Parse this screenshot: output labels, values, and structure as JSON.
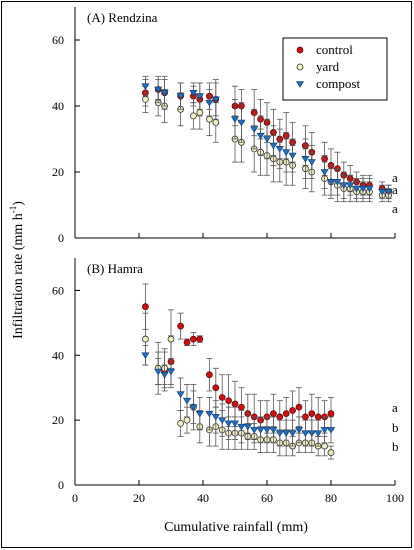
{
  "chart_data": {
    "type": "scatter",
    "xlabel": "Cumulative rainfall (mm)",
    "ylabel_main": "Infiltration rate (mm h",
    "ylabel_sup": "-1",
    "ylabel_close": ")",
    "xlim": [
      0,
      100
    ],
    "xticks": [
      "0",
      "20",
      "40",
      "60",
      "80",
      "100"
    ],
    "legend": {
      "placement": "top-right",
      "entries": [
        "control",
        "yard",
        "compost"
      ]
    },
    "colors": {
      "control": "#cc1111",
      "yard": "#f2f0c0",
      "compost": "#1f6fc0"
    },
    "panels": [
      {
        "title": "(A) Rendzina",
        "ylim": [
          0,
          70
        ],
        "yticks": [
          "0",
          "20",
          "40",
          "60"
        ],
        "letters": [
          "a",
          "a",
          "a"
        ],
        "series": [
          {
            "name": "control",
            "x": [
              22,
              26,
              28,
              33,
              37,
              39,
              42,
              44,
              50,
              52,
              56,
              58,
              60,
              62,
              64,
              66,
              68,
              72,
              74,
              78,
              80,
              82,
              84,
              86,
              88,
              90,
              92,
              96,
              98
            ],
            "y": [
              44,
              45,
              44,
              43,
              43,
              42,
              43,
              42,
              40,
              40,
              38,
              36,
              35,
              32,
              30,
              31,
              29,
              28,
              26,
              24,
              22,
              21,
              19,
              18,
              17,
              16,
              16,
              15,
              14
            ],
            "err": [
              4,
              3,
              5,
              4,
              3,
              5,
              4,
              6,
              6,
              5,
              7,
              6,
              6,
              7,
              6,
              7,
              6,
              6,
              6,
              5,
              5,
              5,
              4,
              4,
              3,
              3,
              3,
              2,
              2
            ]
          },
          {
            "name": "yard",
            "x": [
              22,
              26,
              28,
              33,
              37,
              39,
              42,
              44,
              50,
              52,
              56,
              58,
              60,
              62,
              64,
              66,
              68,
              72,
              74,
              78,
              80,
              82,
              84,
              86,
              88,
              90,
              92,
              96,
              98
            ],
            "y": [
              42,
              41,
              40,
              39,
              37,
              38,
              36,
              35,
              30,
              29,
              27,
              26,
              25,
              24,
              23,
              23,
              22,
              21,
              20,
              18,
              17,
              16,
              15,
              15,
              14,
              14,
              14,
              13,
              13
            ],
            "err": [
              4,
              4,
              5,
              5,
              4,
              5,
              5,
              6,
              7,
              6,
              7,
              7,
              6,
              7,
              6,
              7,
              6,
              6,
              6,
              5,
              5,
              5,
              4,
              4,
              3,
              3,
              3,
              2,
              2
            ]
          },
          {
            "name": "compost",
            "x": [
              22,
              26,
              28,
              33,
              37,
              39,
              42,
              44,
              50,
              52,
              56,
              58,
              60,
              62,
              64,
              66,
              68,
              72,
              74,
              78,
              80,
              82,
              84,
              86,
              88,
              90,
              92,
              96,
              98
            ],
            "y": [
              46,
              45,
              44,
              43,
              44,
              43,
              41,
              42,
              36,
              35,
              33,
              31,
              30,
              28,
              27,
              26,
              25,
              24,
              23,
              20,
              17,
              17,
              16,
              16,
              15,
              15,
              15,
              14,
              14
            ],
            "err": [
              3,
              4,
              4,
              4,
              3,
              4,
              4,
              5,
              6,
              6,
              6,
              6,
              6,
              6,
              6,
              6,
              5,
              6,
              5,
              5,
              4,
              4,
              4,
              3,
              3,
              3,
              3,
              2,
              2
            ]
          }
        ]
      },
      {
        "title": "(B) Hamra",
        "ylim": [
          0,
          70
        ],
        "yticks": [
          "0",
          "20",
          "40",
          "60"
        ],
        "letters": [
          "a",
          "b",
          "b"
        ],
        "series": [
          {
            "name": "control",
            "x": [
              22,
              26,
              28,
              30,
              33,
              35,
              37,
              39,
              42,
              44,
              46,
              48,
              50,
              52,
              54,
              56,
              58,
              60,
              62,
              64,
              66,
              68,
              70,
              72,
              74,
              76,
              78,
              80
            ],
            "y": [
              55,
              36,
              35,
              38,
              49,
              44,
              45,
              45,
              34,
              30,
              27,
              26,
              25,
              24,
              22,
              21,
              20,
              21,
              22,
              21,
              22,
              23,
              24,
              21,
              22,
              21,
              21,
              22
            ],
            "err": [
              7,
              5,
              6,
              8,
              4,
              1,
              2,
              1,
              5,
              6,
              7,
              8,
              7,
              6,
              6,
              7,
              6,
              5,
              6,
              5,
              5,
              6,
              6,
              5,
              6,
              6,
              5,
              5
            ]
          },
          {
            "name": "yard",
            "x": [
              22,
              26,
              28,
              30,
              33,
              35,
              37,
              39,
              42,
              44,
              46,
              48,
              50,
              52,
              54,
              56,
              58,
              60,
              62,
              64,
              66,
              68,
              70,
              72,
              74,
              76,
              78,
              80
            ],
            "y": [
              45,
              36,
              36,
              45,
              19,
              20,
              24,
              18,
              17,
              18,
              17,
              16,
              16,
              16,
              15,
              15,
              14,
              14,
              14,
              13,
              13,
              12,
              13,
              13,
              13,
              12,
              12,
              10
            ],
            "err": [
              8,
              8,
              6,
              9,
              4,
              4,
              7,
              5,
              5,
              6,
              6,
              5,
              5,
              5,
              4,
              4,
              4,
              4,
              4,
              4,
              4,
              3,
              3,
              3,
              3,
              3,
              3,
              2
            ]
          },
          {
            "name": "compost",
            "x": [
              22,
              26,
              28,
              30,
              33,
              35,
              37,
              39,
              42,
              44,
              46,
              48,
              50,
              52,
              54,
              56,
              58,
              60,
              62,
              64,
              66,
              68,
              70,
              72,
              74,
              76,
              78,
              80
            ],
            "y": [
              40,
              35,
              34,
              35,
              28,
              26,
              24,
              22,
              22,
              21,
              20,
              19,
              19,
              18,
              18,
              17,
              17,
              17,
              17,
              16,
              16,
              16,
              17,
              16,
              16,
              16,
              17,
              17
            ],
            "err": [
              3,
              4,
              3,
              4,
              5,
              5,
              5,
              5,
              5,
              5,
              5,
              5,
              5,
              5,
              4,
              4,
              4,
              4,
              4,
              4,
              4,
              4,
              4,
              4,
              4,
              4,
              4,
              4
            ]
          }
        ]
      }
    ]
  }
}
